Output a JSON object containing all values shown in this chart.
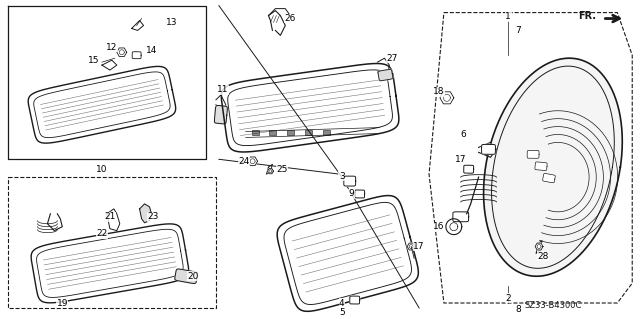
{
  "bg_color": "#ffffff",
  "line_color": "#1a1a1a",
  "part_code": "SZ33-B4300C",
  "fig_width": 6.4,
  "fig_height": 3.19
}
